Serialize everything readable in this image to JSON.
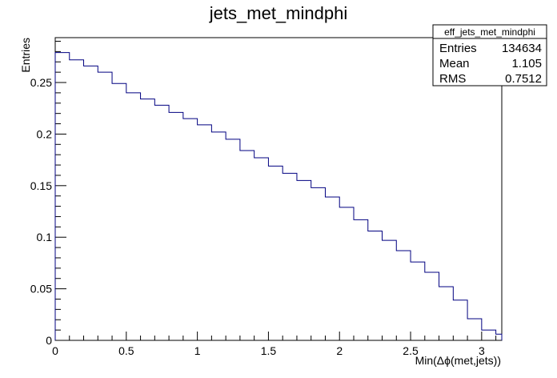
{
  "chart_data": {
    "type": "histogram",
    "title": "jets_met_mindphi",
    "xlabel": "Min(Δϕ(met,jets))",
    "ylabel": "Entries",
    "xlim": [
      0,
      3.1416
    ],
    "ylim": [
      0,
      0.2935
    ],
    "grid": false,
    "line_color": "#000080",
    "x_ticks": [
      0,
      0.5,
      1,
      1.5,
      2,
      2.5,
      3
    ],
    "x_tick_labels": [
      "0",
      "0.5",
      "1",
      "1.5",
      "2",
      "2.5",
      "3"
    ],
    "y_ticks": [
      0,
      0.05,
      0.1,
      0.15,
      0.2,
      0.25
    ],
    "y_tick_labels": [
      "0",
      "0.05",
      "0.1",
      "0.15",
      "0.2",
      "0.25"
    ],
    "bin_width": 0.1,
    "bin_start": 0,
    "values": [
      0.279,
      0.272,
      0.266,
      0.26,
      0.249,
      0.24,
      0.234,
      0.228,
      0.221,
      0.215,
      0.209,
      0.202,
      0.195,
      0.184,
      0.177,
      0.169,
      0.162,
      0.155,
      0.148,
      0.139,
      0.129,
      0.117,
      0.106,
      0.097,
      0.087,
      0.076,
      0.066,
      0.052,
      0.039,
      0.021,
      0.01,
      0.006
    ],
    "stats_box": {
      "name": "eff_jets_met_mindphi",
      "rows": [
        {
          "label": "Entries",
          "value": "134634"
        },
        {
          "label": "Mean",
          "value": "1.105"
        },
        {
          "label": "RMS",
          "value": "0.7512"
        }
      ]
    }
  }
}
